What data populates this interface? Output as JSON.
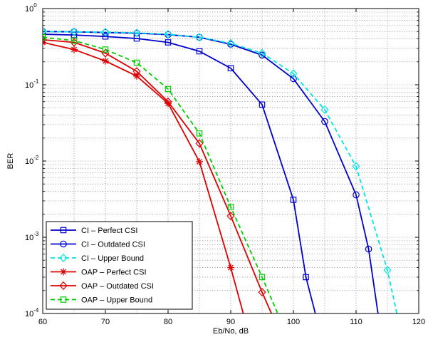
{
  "chart_data": {
    "type": "line",
    "xlabel": "Eb/No, dB",
    "ylabel": "BER",
    "x_scale": "linear",
    "y_scale": "log",
    "xlim": [
      60,
      120
    ],
    "ylim": [
      0.0001,
      1
    ],
    "x_ticks": [
      "60",
      "70",
      "80",
      "90",
      "100",
      "110",
      "120"
    ],
    "y_ticks": [
      {
        "base": "10",
        "exp": "0"
      },
      {
        "base": "10",
        "exp": "-1"
      },
      {
        "base": "10",
        "exp": "-2"
      },
      {
        "base": "10",
        "exp": "-3"
      },
      {
        "base": "10",
        "exp": "-4"
      }
    ],
    "grid": true,
    "legend_position": "bottom-left",
    "series": [
      {
        "name": "CI – Perfect CSI",
        "color": "#0000cc",
        "dash": "solid",
        "marker": "square",
        "x": [
          60,
          65,
          70,
          75,
          80,
          85,
          90,
          95,
          100,
          102,
          103.5
        ],
        "y": [
          0.46,
          0.45,
          0.43,
          0.405,
          0.36,
          0.275,
          0.165,
          0.055,
          0.0031,
          0.0003,
          0.0001
        ]
      },
      {
        "name": "CI – Outdated CSI",
        "color": "#0000cc",
        "dash": "solid",
        "marker": "circle",
        "x": [
          60,
          65,
          70,
          75,
          80,
          85,
          90,
          95,
          100,
          105,
          110,
          112,
          113.5
        ],
        "y": [
          0.5,
          0.495,
          0.485,
          0.475,
          0.455,
          0.42,
          0.34,
          0.245,
          0.12,
          0.033,
          0.0036,
          0.0007,
          0.0001
        ]
      },
      {
        "name": "CI – Upper Bound",
        "color": "#00e5e5",
        "dash": "dashed",
        "marker": "diamond",
        "x": [
          60,
          65,
          70,
          75,
          80,
          85,
          90,
          95,
          100,
          105,
          110,
          115,
          116.5
        ],
        "y": [
          0.5,
          0.495,
          0.49,
          0.48,
          0.46,
          0.42,
          0.35,
          0.26,
          0.14,
          0.047,
          0.0085,
          0.00037,
          0.0001
        ]
      },
      {
        "name": "OAP – Perfect CSI",
        "color": "#dd0000",
        "dash": "solid",
        "marker": "asterisk",
        "x": [
          60,
          65,
          70,
          75,
          80,
          85,
          90,
          92
        ],
        "y": [
          0.36,
          0.29,
          0.205,
          0.13,
          0.057,
          0.0098,
          0.0004,
          0.0001
        ]
      },
      {
        "name": "OAP – Outdated CSI",
        "color": "#dd0000",
        "dash": "solid",
        "marker": "diamond",
        "x": [
          60,
          65,
          70,
          75,
          80,
          85,
          90,
          95,
          96.5
        ],
        "y": [
          0.39,
          0.36,
          0.26,
          0.15,
          0.06,
          0.017,
          0.0019,
          0.00019,
          0.0001
        ]
      },
      {
        "name": "OAP – Upper Bound",
        "color": "#00cc00",
        "dash": "dashed",
        "marker": "square",
        "x": [
          60,
          65,
          70,
          75,
          80,
          85,
          90,
          95,
          97.5
        ],
        "y": [
          0.42,
          0.38,
          0.29,
          0.195,
          0.088,
          0.023,
          0.0025,
          0.0003,
          0.0001
        ]
      }
    ]
  }
}
